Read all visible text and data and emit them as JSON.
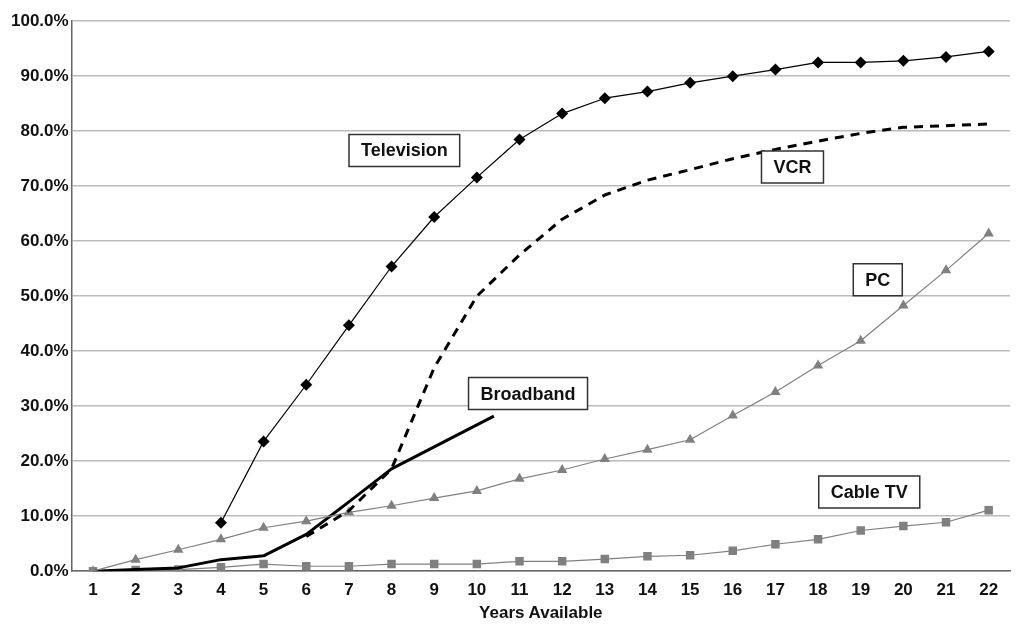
{
  "chart_data": {
    "type": "line",
    "xlabel": "Years Available",
    "xlim": [
      0.5,
      22.5
    ],
    "xticks": [
      1,
      2,
      3,
      4,
      5,
      6,
      7,
      8,
      9,
      10,
      11,
      12,
      13,
      14,
      15,
      16,
      17,
      18,
      19,
      20,
      21,
      22
    ],
    "ylim": [
      0,
      100
    ],
    "yticks": [
      {
        "value": 0,
        "label": "0.0%"
      },
      {
        "value": 10,
        "label": "10.0%"
      },
      {
        "value": 20,
        "label": "20.0%"
      },
      {
        "value": 30,
        "label": "30.0%"
      },
      {
        "value": 40,
        "label": "40.0%"
      },
      {
        "value": 50,
        "label": "50.0%"
      },
      {
        "value": 60,
        "label": "60.0%"
      },
      {
        "value": 70,
        "label": "70.0%"
      },
      {
        "value": 80,
        "label": "80.0%"
      },
      {
        "value": 90,
        "label": "90.0%"
      },
      {
        "value": 100,
        "label": "100.0%"
      }
    ],
    "grid": "y",
    "legend": false,
    "series": [
      {
        "name": "Television",
        "color": "#000000",
        "marker": "diamond",
        "line_style": "solid",
        "x": [
          4,
          5,
          6,
          7,
          8,
          9,
          10,
          11,
          12,
          13,
          14,
          15,
          16,
          17,
          18,
          19,
          20,
          21,
          22
        ],
        "values": [
          8.8,
          23.6,
          33.9,
          44.7,
          55.4,
          64.4,
          71.6,
          78.5,
          83.2,
          86,
          87.2,
          88.8,
          90,
          91.2,
          92.5,
          92.5,
          92.8,
          93.5,
          94.5
        ]
      },
      {
        "name": "VCR",
        "color": "#000000",
        "marker": "none",
        "line_style": "dashed",
        "x": [
          6,
          7,
          8,
          9,
          10,
          11,
          12,
          13,
          14,
          15,
          16,
          17,
          18,
          19,
          20,
          21,
          22
        ],
        "values": [
          6.3,
          11,
          18.6,
          37,
          50,
          57.5,
          64,
          68.4,
          71.1,
          73,
          75,
          76.7,
          78.2,
          79.6,
          80.7,
          81,
          81.3
        ]
      },
      {
        "name": "PC",
        "color": "#808080",
        "marker": "triangle",
        "line_style": "solid",
        "x": [
          1,
          2,
          3,
          4,
          5,
          6,
          7,
          8,
          9,
          10,
          11,
          12,
          13,
          14,
          15,
          16,
          17,
          18,
          19,
          20,
          21,
          22
        ],
        "values": [
          0,
          2.1,
          3.9,
          5.8,
          7.9,
          9.1,
          10.7,
          11.9,
          13.3,
          14.6,
          16.8,
          18.4,
          20.4,
          22.1,
          23.9,
          28.3,
          32.6,
          37.4,
          41.9,
          48.3,
          54.7,
          61.4
        ]
      },
      {
        "name": "Broadband",
        "color": "#000000",
        "marker": "none",
        "line_style": "solid",
        "x": [
          1,
          2,
          3,
          4,
          5,
          6,
          7,
          8,
          9,
          10,
          10.4
        ],
        "values": [
          0,
          0.3,
          0.6,
          2.1,
          2.8,
          6.7,
          12.6,
          18.6,
          22.6,
          26.6,
          28.2
        ]
      },
      {
        "name": "Cable TV",
        "color": "#808080",
        "marker": "square",
        "line_style": "solid",
        "x": [
          1,
          2,
          3,
          4,
          5,
          6,
          7,
          8,
          9,
          10,
          11,
          12,
          13,
          14,
          15,
          16,
          17,
          18,
          19,
          20,
          21,
          22
        ],
        "values": [
          0,
          0.2,
          0.3,
          0.7,
          1.3,
          0.9,
          0.9,
          1.3,
          1.3,
          1.3,
          1.8,
          1.8,
          2.2,
          2.7,
          2.9,
          3.7,
          4.9,
          5.8,
          7.4,
          8.2,
          8.9,
          11.1
        ]
      }
    ]
  }
}
